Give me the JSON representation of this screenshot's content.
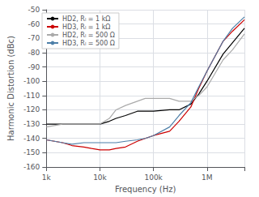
{
  "chart_data": {
    "type": "line",
    "xlabel": "Frequency (Hz)",
    "ylabel": "Harmonic Distortion (dBc)",
    "log": "x",
    "grid": true,
    "legend": "upper left",
    "xlim": [
      1000,
      5000000
    ],
    "xticks": [
      {
        "value": 1000,
        "label": "1k"
      },
      {
        "value": 10000,
        "label": "10k"
      },
      {
        "value": 100000,
        "label": "100k"
      },
      {
        "value": 1000000,
        "label": "1M"
      }
    ],
    "ylim": [
      -160,
      -50
    ],
    "yticks": [
      -160,
      -150,
      -140,
      -130,
      -120,
      -110,
      -100,
      -90,
      -80,
      -70,
      -60,
      -50
    ],
    "x": [
      1000,
      2000,
      3000,
      5000,
      7000,
      10000,
      15000,
      20000,
      30000,
      50000,
      70000,
      100000,
      200000,
      300000,
      500000,
      700000,
      1000000,
      2000000,
      3000000,
      5000000
    ],
    "series": [
      {
        "name": "HD2, Rₗ = 1 kΩ",
        "color": "#000000",
        "values": [
          -130,
          -130,
          -130,
          -130,
          -130,
          -130,
          -128,
          -126,
          -124,
          -121,
          -121,
          -121,
          -120,
          -120,
          -116,
          -109,
          -100,
          -81,
          -73,
          -63
        ]
      },
      {
        "name": "HD3, Rₗ = 1 kΩ",
        "color": "#cc0000",
        "values": [
          -141,
          -143,
          -145,
          -146,
          -147,
          -148,
          -148,
          -147,
          -146,
          -142,
          -140,
          -138,
          -135,
          -128,
          -118,
          -105,
          -93,
          -72,
          -65,
          -57
        ]
      },
      {
        "name": "HD2, Rₗ = 500 Ω",
        "color": "#aaaaaa",
        "values": [
          -132,
          -130,
          -130,
          -130,
          -130,
          -130,
          -126,
          -120,
          -117,
          -114,
          -112,
          -112,
          -112,
          -114,
          -114,
          -110,
          -104,
          -85,
          -78,
          -67
        ]
      },
      {
        "name": "HD3, Rₗ = 500 Ω",
        "color": "#4d7fa8",
        "values": [
          -141,
          -143,
          -144,
          -143,
          -143,
          -143,
          -143,
          -143,
          -142,
          -141,
          -140,
          -138,
          -132,
          -124,
          -115,
          -104,
          -93,
          -72,
          -63,
          -55
        ]
      }
    ]
  }
}
